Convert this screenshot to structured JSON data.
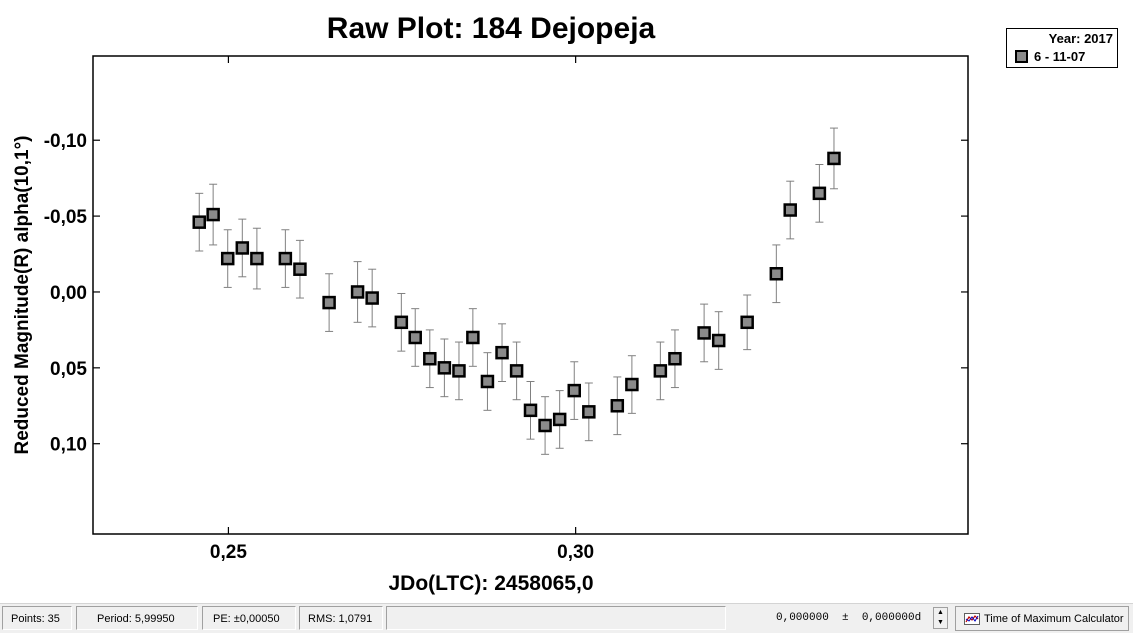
{
  "chart_data": {
    "type": "scatter",
    "title": "Raw Plot: 184 Dejopeja",
    "xlabel": "JDo(LTC): 2458065,0",
    "ylabel": "Reduced Magnitude(R) alpha(10,1°)",
    "xlim": [
      0.2305,
      0.3565
    ],
    "ylim": [
      -0.1555,
      0.1595
    ],
    "y_inverted": true,
    "x_ticks": [
      0.25,
      0.3
    ],
    "x_tick_labels": [
      "0,25",
      "0,30"
    ],
    "y_ticks": [
      -0.1,
      -0.05,
      0.0,
      0.05,
      0.1
    ],
    "y_tick_labels": [
      "-0,10",
      "-0,05",
      "0,00",
      "0,05",
      "0,10"
    ],
    "grid": false,
    "legend": {
      "position": "top-right",
      "year": "Year: 2017"
    },
    "series": [
      {
        "name": "6 - 11-07",
        "color": "#8a8a8a",
        "edge_color": "#000000",
        "error_bar_color": "#808080",
        "points": [
          {
            "x": 0.2458,
            "y": -0.046,
            "err": 0.019
          },
          {
            "x": 0.2478,
            "y": -0.051,
            "err": 0.02
          },
          {
            "x": 0.2499,
            "y": -0.022,
            "err": 0.019
          },
          {
            "x": 0.252,
            "y": -0.029,
            "err": 0.019
          },
          {
            "x": 0.2541,
            "y": -0.022,
            "err": 0.02
          },
          {
            "x": 0.2582,
            "y": -0.022,
            "err": 0.019
          },
          {
            "x": 0.2603,
            "y": -0.015,
            "err": 0.019
          },
          {
            "x": 0.2645,
            "y": 0.007,
            "err": 0.019
          },
          {
            "x": 0.2686,
            "y": 0.0,
            "err": 0.02
          },
          {
            "x": 0.2707,
            "y": 0.004,
            "err": 0.019
          },
          {
            "x": 0.2749,
            "y": 0.02,
            "err": 0.019
          },
          {
            "x": 0.2769,
            "y": 0.03,
            "err": 0.019
          },
          {
            "x": 0.279,
            "y": 0.044,
            "err": 0.019
          },
          {
            "x": 0.2811,
            "y": 0.05,
            "err": 0.019
          },
          {
            "x": 0.2832,
            "y": 0.052,
            "err": 0.019
          },
          {
            "x": 0.2852,
            "y": 0.03,
            "err": 0.019
          },
          {
            "x": 0.2873,
            "y": 0.059,
            "err": 0.019
          },
          {
            "x": 0.2894,
            "y": 0.04,
            "err": 0.019
          },
          {
            "x": 0.2915,
            "y": 0.052,
            "err": 0.019
          },
          {
            "x": 0.2935,
            "y": 0.078,
            "err": 0.019
          },
          {
            "x": 0.2956,
            "y": 0.088,
            "err": 0.019
          },
          {
            "x": 0.2977,
            "y": 0.084,
            "err": 0.019
          },
          {
            "x": 0.2998,
            "y": 0.065,
            "err": 0.019
          },
          {
            "x": 0.3019,
            "y": 0.079,
            "err": 0.019
          },
          {
            "x": 0.306,
            "y": 0.075,
            "err": 0.019
          },
          {
            "x": 0.3081,
            "y": 0.061,
            "err": 0.019
          },
          {
            "x": 0.3122,
            "y": 0.052,
            "err": 0.019
          },
          {
            "x": 0.3143,
            "y": 0.044,
            "err": 0.019
          },
          {
            "x": 0.3185,
            "y": 0.027,
            "err": 0.019
          },
          {
            "x": 0.3206,
            "y": 0.032,
            "err": 0.019
          },
          {
            "x": 0.3247,
            "y": 0.02,
            "err": 0.018
          },
          {
            "x": 0.3289,
            "y": -0.012,
            "err": 0.019
          },
          {
            "x": 0.3309,
            "y": -0.054,
            "err": 0.019
          },
          {
            "x": 0.3351,
            "y": -0.065,
            "err": 0.019
          },
          {
            "x": 0.3372,
            "y": -0.088,
            "err": 0.02
          }
        ]
      }
    ]
  },
  "statusbar": {
    "points": "Points: 35",
    "period": "Period: 5,99950",
    "pe": "PE: ±0,00050",
    "rms": "RMS: 1,0791",
    "value": "0,000000  ±  0,000000d",
    "tmc_label": "Time of Maximum Calculator"
  },
  "icons": {
    "spinner": "spinner-updown-icon",
    "tmc": "chart-line-icon"
  }
}
